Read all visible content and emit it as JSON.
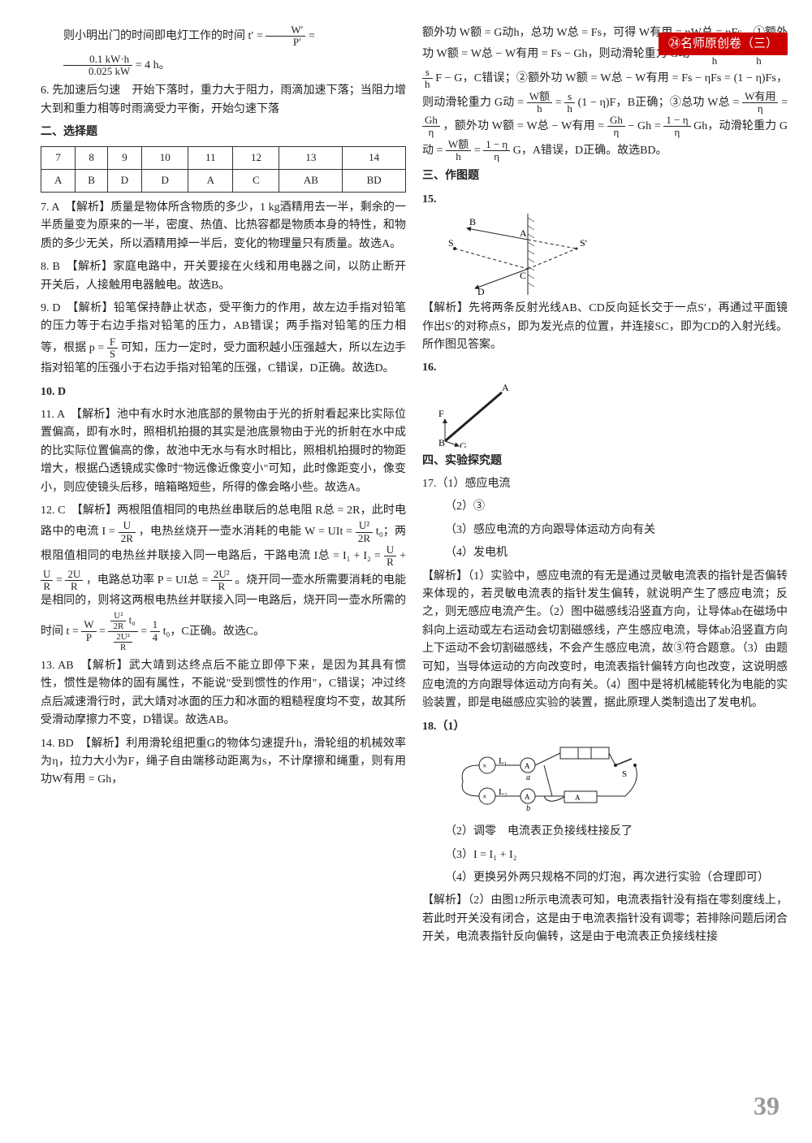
{
  "header": {
    "title": "㉔名师原创卷（三）"
  },
  "colors": {
    "header_bg": "#c00",
    "header_fg": "#fff",
    "text": "#222",
    "page_num": "#999",
    "border": "#333"
  },
  "fonts": {
    "body_size": 14,
    "header_size": 15,
    "pagenum_size": 32
  },
  "page_num": "39",
  "left": {
    "intro_a": "则小明出门的时间即电灯工作的时间 t′ = ",
    "intro_frac1_n": "W′",
    "intro_frac1_d": "P′",
    "intro_eq": " = ",
    "intro_frac2_n": "0.1 kW·h",
    "intro_frac2_d": "0.025 kW",
    "intro_b": " = 4 h。",
    "q6": "6. 先加速后匀速　开始下落时，重力大于阻力，雨滴加速下落；当阻力增大到和重力相等时雨滴受力平衡，开始匀速下落",
    "sect2": "二、选择题",
    "table": {
      "columns": [
        "7",
        "8",
        "9",
        "10",
        "11",
        "12",
        "13",
        "14"
      ],
      "rows": [
        [
          "A",
          "B",
          "D",
          "D",
          "A",
          "C",
          "AB",
          "BD"
        ]
      ],
      "border_color": "#333"
    },
    "q7": "7. A　【解析】质量是物体所含物质的多少，1 kg酒精用去一半，剩余的一半质量变为原来的一半，密度、热值、比热容都是物质本身的特性，和物质的多少无关，所以酒精用掉一半后，变化的物理量只有质量。故选A。",
    "q8": "8. B　【解析】家庭电路中，开关要接在火线和用电器之间，以防止断开开关后，人接触用电器触电。故选B。",
    "q9a": "9. D　【解析】铅笔保持静止状态，受平衡力的作用，故左边手指对铅笔的压力等于右边手指对铅笔的压力，AB错误；两手指对铅笔的压力相等，根据 p = ",
    "q9_frac_n": "F",
    "q9_frac_d": "S",
    "q9b": " 可知，压力一定时，受力面积越小压强越大，所以左边手指对铅笔的压强小于右边手指对铅笔的压强，C错误，D正确。故选D。",
    "q10": "10. D",
    "q11": "11. A　【解析】池中有水时水池底部的景物由于光的折射看起来比实际位置偏高，即有水时，照相机拍摄的其实是池底景物由于光的折射在水中成的比实际位置偏高的像，故池中无水与有水时相比，照相机拍摄时的物距增大，根据凸透镜成实像时\"物远像近像变小\"可知，此时像距变小，像变小，则应使镜头后移，暗箱略短些，所得的像会略小些。故选A。",
    "q12a": "12. C　【解析】两根阻值相同的电热丝串联后的总电阻 R总 = 2R，此时电路中的电流 I = ",
    "q12_f1_n": "U",
    "q12_f1_d": "2R",
    "q12b": "，电热丝烧开一壶水消耗的电能 W = UIt = ",
    "q12_f2_n": "U²",
    "q12_f2_d": "2R",
    "q12c": " t₀；两根阻值相同的电热丝并联接入同一电路后，干路电流 I总 = I₁ + I₂ = ",
    "q12_f3_n": "U",
    "q12_f3_d": "R",
    "q12_plus": " + ",
    "q12_f4_n": "U",
    "q12_f4_d": "R",
    "q12_eq2": " = ",
    "q12_f5_n": "2U",
    "q12_f5_d": "R",
    "q12d": "，电路总功率 P = UI总 = ",
    "q12_f6_n": "2U²",
    "q12_f6_d": "R",
    "q12e": "。烧开同一壶水所需要消耗的电能是相同的，则将这两根电热丝并联接入同一电路后，烧开同一壶水所需的时间 t = ",
    "q12_f7_n": "W",
    "q12_f7_d": "P",
    "q12_eq3": " = ",
    "q12_big_top_n": "U²",
    "q12_big_top_d": "2R",
    "q12_big_top_t": " t₀",
    "q12_big_bot_n": "2U²",
    "q12_big_bot_d": "R",
    "q12_eq4": " = ",
    "q12_f8_n": "1",
    "q12_f8_d": "4",
    "q12f": " t₀，C正确。故选C。",
    "q13": "13. AB　【解析】武大靖到达终点后不能立即停下来，是因为其具有惯性，惯性是物体的固有属性，不能说\"受到惯性的作用\"，C错误；冲过终点后减速滑行时，武大靖对冰面的压力和冰面的粗糙程度均不变，故其所受滑动摩擦力不变，D错误。故选AB。",
    "q14": "14. BD　【解析】利用滑轮组把重G的物体匀速提升h，滑轮组的机械效率为η，拉力大小为F，绳子自由端移动距离为s，不计摩擦和绳重，则有用功W有用 = Gh，"
  },
  "right": {
    "cont_a": "额外功 W额 = G动h，总功 W总 = Fs，可得 W有用 = ηW总 = ηFs。①额外功 W额 = W总 − W有用 = Fs − Gh，则动滑轮重力 G动 = ",
    "rf1_n": "W额",
    "rf1_d": "h",
    "req1": " = ",
    "rf2_n": "Fs − Gh",
    "rf2_d": "h",
    "req2": " = ",
    "rf3_n": "s",
    "rf3_d": "h",
    "cont_b": " F − G，C错误；②额外功 W额 = W总 − W有用 = Fs − ηFs = (1 − η)Fs，则动滑轮重力 G动 = ",
    "rf4_n": "W额",
    "rf4_d": "h",
    "req3": " = ",
    "rf5_n": "s",
    "rf5_d": "h",
    "cont_c": " (1 − η)F，B正确；③总功 W总 = ",
    "rf6_n": "W有用",
    "rf6_d": "η",
    "req4": " = ",
    "rf7_n": "Gh",
    "rf7_d": "η",
    "cont_d": "，额外功 W额 = W总 − W有用 = ",
    "rf8_n": "Gh",
    "rf8_d": "η",
    "cont_d2": " − Gh = ",
    "rf9_n": "1 − η",
    "rf9_d": "η",
    "cont_e": " Gh，动滑轮重力 G动 = ",
    "rf10_n": "W额",
    "rf10_d": "h",
    "req5": " = ",
    "rf11_n": "1 − η",
    "rf11_d": "η",
    "cont_f": " G，A错误，D正确。故选BD。",
    "sect3": "三、作图题",
    "q15_num": "15.",
    "fig15": {
      "labels": {
        "S": "S",
        "B": "B",
        "A": "A",
        "Sp": "S′",
        "C": "C",
        "D": "D"
      },
      "stroke": "#222",
      "dash": "4,3"
    },
    "q15_ans": "【解析】先将两条反射光线AB、CD反向延长交于一点S′，再通过平面镜作出S′的对称点S，即为发光点的位置，并连接SC，即为CD的入射光线。所作图见答案。",
    "q16_num": "16.",
    "fig16": {
      "labels": {
        "A": "A",
        "F": "F",
        "B": "B",
        "G": "G"
      },
      "stroke": "#222"
    },
    "sect4": "四、实验探究题",
    "q17_1": "17.（1）感应电流",
    "q17_2": "（2）③",
    "q17_3": "（3）感应电流的方向跟导体运动方向有关",
    "q17_4": "（4）发电机",
    "q17_ans": "【解析】（1）实验中，感应电流的有无是通过灵敏电流表的指针是否偏转来体现的，若灵敏电流表的指针发生偏转，就说明产生了感应电流；反之，则无感应电流产生。（2）图中磁感线沿竖直方向，让导体ab在磁场中斜向上运动或左右运动会切割磁感线，产生感应电流，导体ab沿竖直方向上下运动不会切割磁感线，不会产生感应电流，故③符合题意。（3）由题可知，当导体运动的方向改变时，电流表指针偏转方向也改变，这说明感应电流的方向跟导体运动方向有关。（4）图中是将机械能转化为电能的实验装置，即是电磁感应实验的装置，据此原理人类制造出了发电机。",
    "q18_num": "18.（1）",
    "fig18": {
      "labels": {
        "L1": "L₁",
        "L2": "L₂",
        "a": "a",
        "b": "b",
        "S": "S"
      }
    },
    "q18_2": "（2）调零　电流表正负接线柱接反了",
    "q18_3": "（3）I = I₁ + I₂",
    "q18_4": "（4）更换另外两只规格不同的灯泡，再次进行实验（合理即可）",
    "q18_ans": "【解析】（2）由图12所示电流表可知，电流表指针没有指在零刻度线上，若此时开关没有闭合，这是由于电流表指针没有调零；若排除问题后闭合开关，电流表指针反向偏转，这是由于电流表正负接线柱接"
  }
}
